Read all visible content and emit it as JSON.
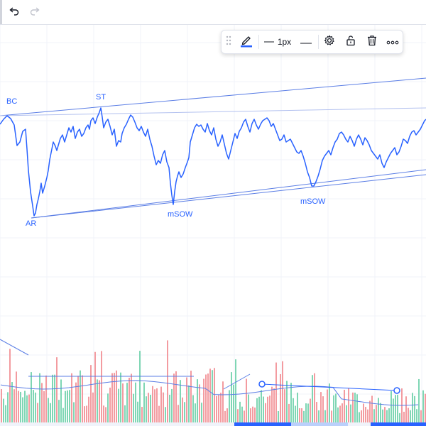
{
  "topbar": {
    "undo_icon": "undo-arrow-icon",
    "redo_icon": "redo-arrow-icon"
  },
  "floating_toolbar": {
    "drag_handle_icon": "drag-dots-icon",
    "pencil_icon": "pencil-icon",
    "line_color": "#2962ff",
    "line_width_label": "1px",
    "line_style_icon": "line-style-icon",
    "settings_icon": "gear-icon",
    "lock_icon": "unlock-icon",
    "delete_icon": "trash-icon",
    "more_icon": "more-dots-icon"
  },
  "annotations": {
    "bc": "BC",
    "st": "ST",
    "ar": "AR",
    "msow1": "mSOW",
    "msow2": "mSOW"
  },
  "colors": {
    "line": "#2962ff",
    "channel": "#5b7ee5",
    "vol_up": "#7fd6b4",
    "vol_down": "#f39ba0",
    "grid": "#f0f3fa",
    "selection": "#2962ff"
  }
}
